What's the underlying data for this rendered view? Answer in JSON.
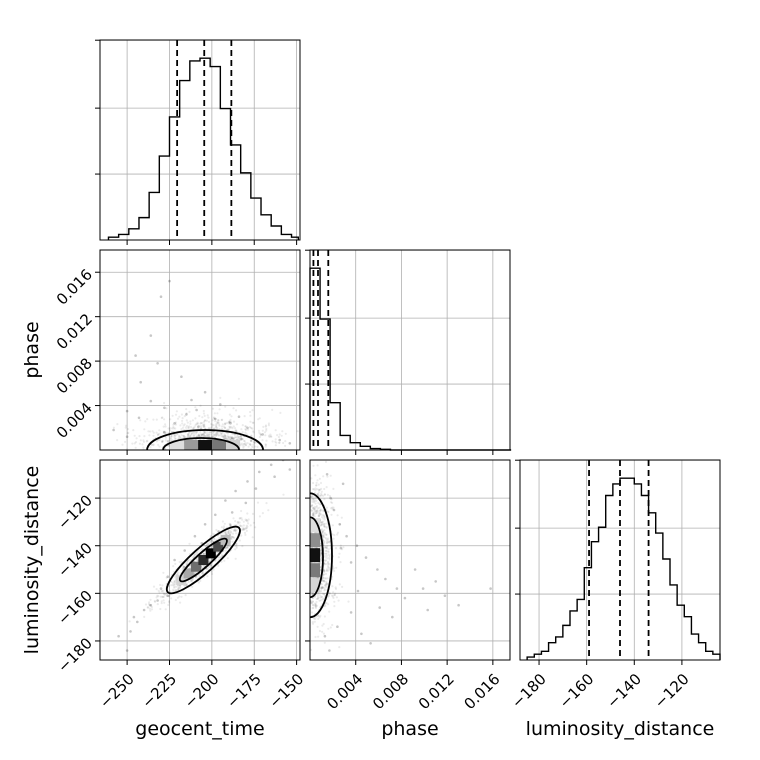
{
  "chart_data": {
    "type": "corner",
    "grid": true,
    "parameters": [
      "geocent_time",
      "phase",
      "luminosity_distance"
    ],
    "quantile_lines_style": "dashed",
    "panels": [
      {
        "id": "hist-geocent_time",
        "type": "histogram",
        "parameter": "geocent_time",
        "xlim": [
          -266,
          -148
        ],
        "bin_edges": [
          -261,
          -255,
          -249,
          -243,
          -237,
          -231,
          -225,
          -219,
          -213,
          -207,
          -201,
          -195,
          -189,
          -183,
          -177,
          -171,
          -165,
          -159,
          -153,
          -149
        ],
        "counts": [
          1,
          2,
          4,
          8,
          17,
          30,
          44,
          57,
          64,
          65,
          62,
          47,
          34,
          24,
          15,
          9,
          5,
          2,
          1
        ],
        "quantiles": [
          -220.5,
          -204.5,
          -188.5
        ]
      },
      {
        "id": "scatter-phase-vs-geocent_time",
        "type": "scatter-density",
        "x_parameter": "geocent_time",
        "y_parameter": "phase",
        "xlim": [
          -266,
          -148
        ],
        "ylim": [
          0,
          0.018
        ],
        "mode": [
          -204,
          0.0004
        ],
        "sample_points": [
          [
            -250,
            0.0035
          ],
          [
            -243,
            0.0029
          ],
          [
            -236,
            0.0044
          ],
          [
            -228,
            0.0038
          ],
          [
            -215,
            0.0032
          ],
          [
            -209,
            0.0036
          ],
          [
            -198,
            0.0028
          ],
          [
            -189,
            0.0024
          ],
          [
            -179,
            0.002
          ],
          [
            -170,
            0.0014
          ],
          [
            -236,
            0.0103
          ],
          [
            -232,
            0.0078
          ],
          [
            -218,
            0.0066
          ],
          [
            -242,
            0.0061
          ],
          [
            -225,
            0.0152
          ],
          [
            -230,
            0.0138
          ],
          [
            -245,
            0.0085
          ],
          [
            -204,
            0.0052
          ],
          [
            -212,
            0.0045
          ],
          [
            -195,
            0.0041
          ],
          [
            -184,
            0.003
          ],
          [
            -160,
            0.0009
          ],
          [
            -154,
            0.0006
          ],
          [
            -258,
            0.0018
          ],
          [
            -250,
            0.0012
          ],
          [
            -222,
            0.0024
          ],
          [
            -228,
            0.0016
          ],
          [
            -208,
            0.0021
          ],
          [
            -199,
            0.0017
          ],
          [
            -188,
            0.0011
          ]
        ]
      },
      {
        "id": "hist-phase",
        "type": "histogram",
        "parameter": "phase",
        "xlim": [
          0,
          0.0175
        ],
        "bin_edges": [
          0,
          0.00088,
          0.00176,
          0.00264,
          0.00352,
          0.0044,
          0.00528,
          0.00616,
          0.00704,
          0.00792,
          0.0088,
          0.00968,
          0.01056,
          0.01144,
          0.01232,
          0.0132,
          0.01408,
          0.01496,
          0.01584,
          0.01672,
          0.0176
        ],
        "counts": [
          50,
          36,
          13,
          4,
          2,
          1,
          0.4,
          0.2,
          0,
          0,
          0,
          0,
          0,
          0,
          0,
          0,
          0,
          0,
          0,
          0
        ],
        "quantiles": [
          0.0003,
          0.0007,
          0.0016
        ]
      },
      {
        "id": "scatter-luminosity_distance-vs-geocent_time",
        "type": "scatter-density",
        "x_parameter": "geocent_time",
        "y_parameter": "luminosity_distance",
        "xlim": [
          -266,
          -148
        ],
        "ylim": [
          -188,
          -104
        ],
        "mode": [
          -205,
          -146
        ],
        "sample_points": [
          [
            -255,
            -178
          ],
          [
            -248,
            -176
          ],
          [
            -246,
            -170
          ],
          [
            -240,
            -167
          ],
          [
            -236,
            -165
          ],
          [
            -230,
            -158
          ],
          [
            -226,
            -153
          ],
          [
            -222,
            -146
          ],
          [
            -216,
            -142
          ],
          [
            -210,
            -136
          ],
          [
            -204,
            -131
          ],
          [
            -198,
            -127
          ],
          [
            -192,
            -121
          ],
          [
            -186,
            -117
          ],
          [
            -179,
            -113
          ],
          [
            -172,
            -109
          ],
          [
            -165,
            -106
          ],
          [
            -158,
            -104
          ],
          [
            -250,
            -184
          ],
          [
            -244,
            -172
          ],
          [
            -232,
            -163
          ],
          [
            -226,
            -161
          ],
          [
            -214,
            -151
          ],
          [
            -206,
            -139
          ],
          [
            -196,
            -134
          ],
          [
            -188,
            -126
          ],
          [
            -180,
            -122
          ],
          [
            -174,
            -116
          ],
          [
            -163,
            -111
          ],
          [
            -154,
            -108
          ]
        ]
      },
      {
        "id": "scatter-luminosity_distance-vs-phase",
        "type": "scatter-density",
        "x_parameter": "phase",
        "y_parameter": "luminosity_distance",
        "xlim": [
          0,
          0.0175
        ],
        "ylim": [
          -188,
          -104
        ],
        "mode": [
          0.0003,
          -144
        ],
        "sample_points": [
          [
            0.0021,
            -125
          ],
          [
            0.0026,
            -131
          ],
          [
            0.0032,
            -136
          ],
          [
            0.0018,
            -120
          ],
          [
            0.0041,
            -140
          ],
          [
            0.0049,
            -145
          ],
          [
            0.0059,
            -150
          ],
          [
            0.0066,
            -154
          ],
          [
            0.0076,
            -158
          ],
          [
            0.0083,
            -162
          ],
          [
            0.0092,
            -150
          ],
          [
            0.011,
            -155
          ],
          [
            0.0118,
            -161
          ],
          [
            0.0158,
            -158
          ],
          [
            0.013,
            -165
          ],
          [
            0.0024,
            -174
          ],
          [
            0.0036,
            -168
          ],
          [
            0.0045,
            -177
          ],
          [
            0.0053,
            -181
          ],
          [
            0.0013,
            -178
          ],
          [
            0.0029,
            -114
          ],
          [
            0.0061,
            -166
          ],
          [
            0.0072,
            -170
          ],
          [
            0.0017,
            -184
          ],
          [
            0.0042,
            -159
          ],
          [
            0.0036,
            -147
          ],
          [
            0.0027,
            -141
          ],
          [
            0.0015,
            -110
          ],
          [
            0.0099,
            -158
          ],
          [
            0.0103,
            -167
          ]
        ]
      },
      {
        "id": "hist-luminosity_distance",
        "type": "histogram",
        "parameter": "luminosity_distance",
        "xlim": [
          -188,
          -104
        ],
        "bin_edges": [
          -185,
          -182,
          -179,
          -176,
          -173,
          -170,
          -167,
          -164,
          -161,
          -158,
          -155,
          -152,
          -149,
          -146,
          -143,
          -140,
          -137,
          -134,
          -131,
          -128,
          -125,
          -122,
          -119,
          -116,
          -113,
          -110,
          -107,
          -104
        ],
        "counts": [
          1,
          2,
          3,
          6,
          8,
          12,
          17,
          21,
          32,
          41,
          46,
          57,
          61,
          63,
          63,
          61,
          57,
          51,
          44,
          35,
          26,
          19,
          15,
          9,
          6,
          3,
          2
        ],
        "quantiles": [
          -159,
          -146,
          -134
        ]
      }
    ],
    "axes": {
      "geocent_time": {
        "label": "geocent_time",
        "ticks": [
          -250,
          -225,
          -200,
          -175,
          -150
        ],
        "tick_labels": [
          "−250",
          "−225",
          "−200",
          "−175",
          "−150"
        ]
      },
      "phase": {
        "label": "phase",
        "ticks": [
          0.004,
          0.008,
          0.012,
          0.016
        ],
        "tick_labels": [
          "0.004",
          "0.008",
          "0.012",
          "0.016"
        ]
      },
      "luminosity_distance": {
        "label": "luminosity_distance",
        "ticks": [
          -180,
          -160,
          -140,
          -120
        ],
        "tick_labels": [
          "−180",
          "−160",
          "−140",
          "−120"
        ]
      }
    }
  }
}
